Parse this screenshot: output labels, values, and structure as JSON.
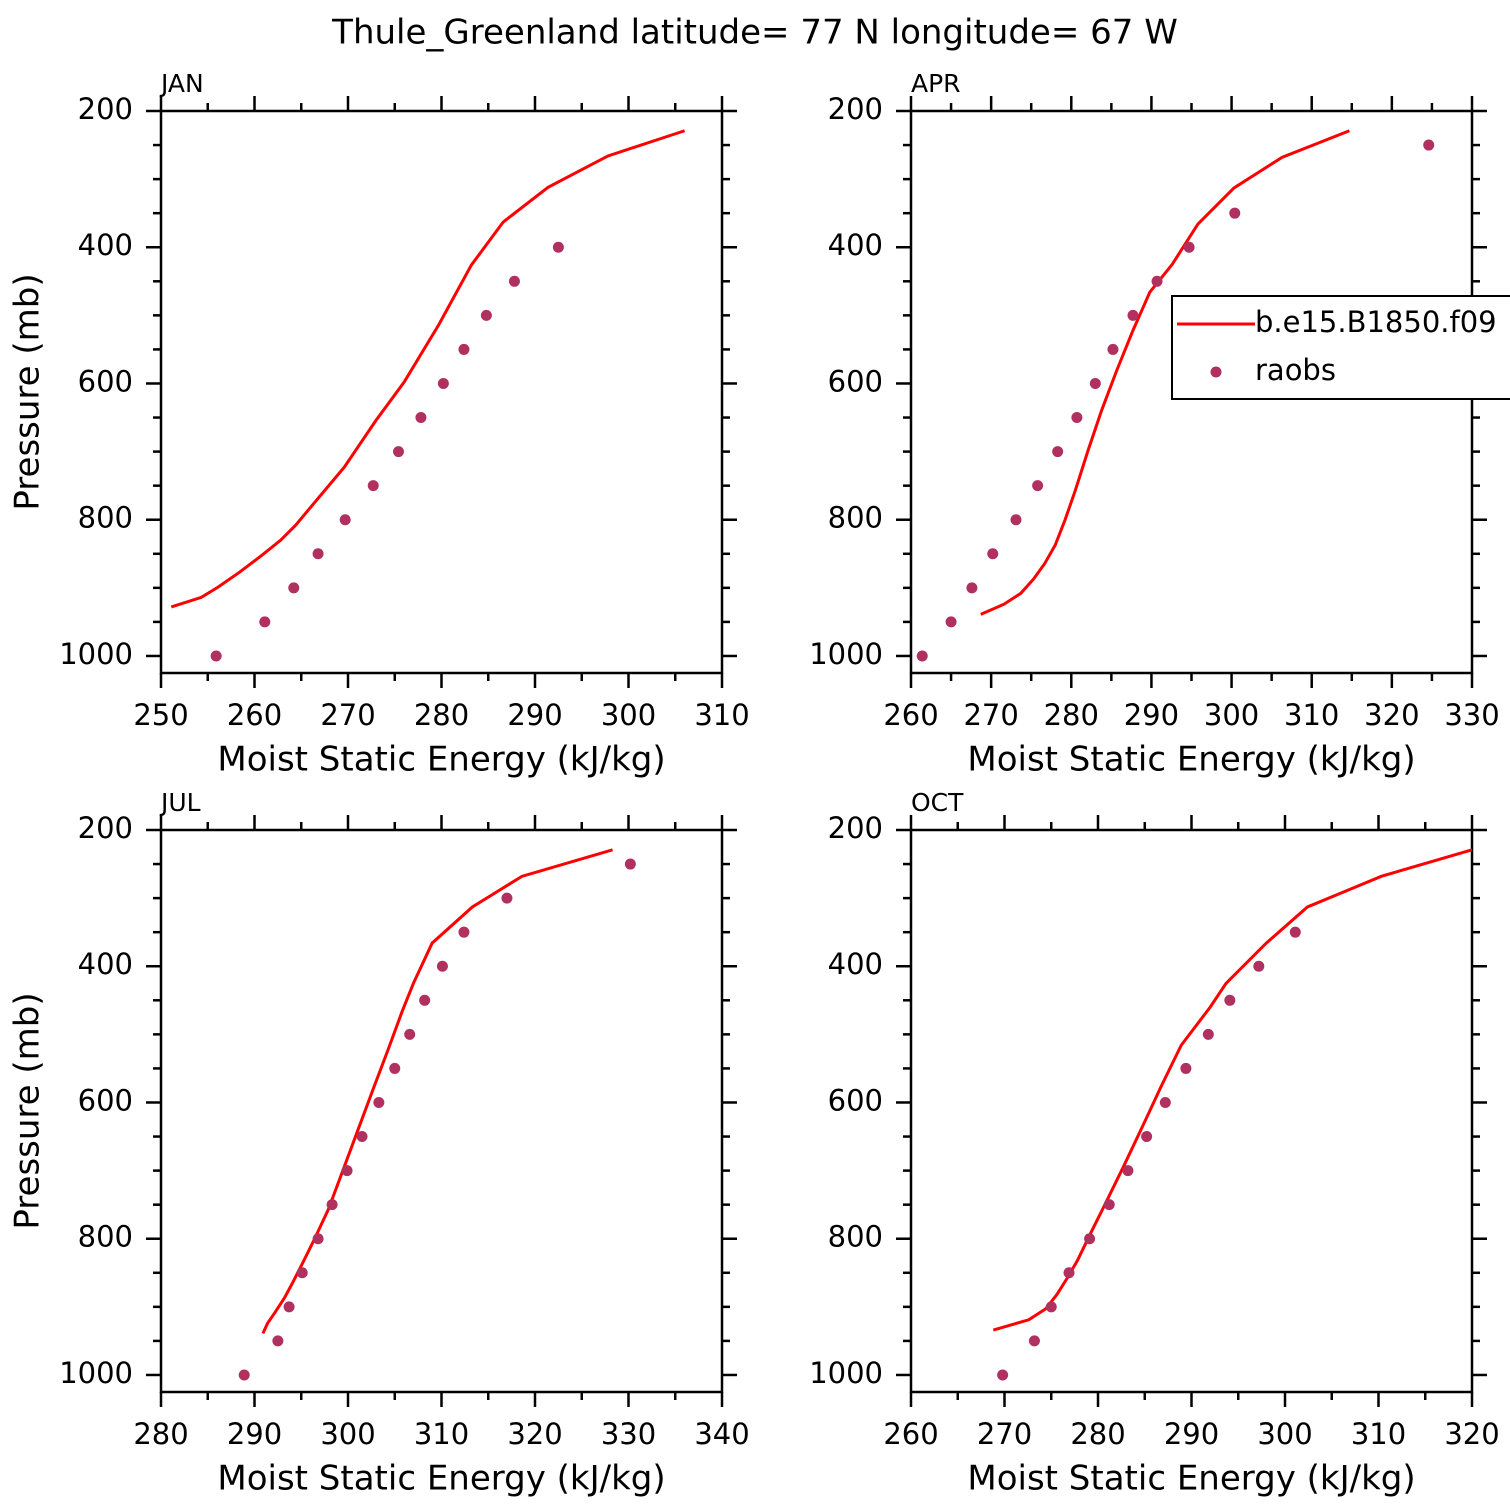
{
  "title": "Thule_Greenland  latitude= 77 N longitude= 67 W",
  "chart_data": [
    {
      "type": "line",
      "title": "JAN",
      "xlabel": "Moist Static Energy (kJ/kg)",
      "ylabel": "Pressure (mb)",
      "xlim": [
        250,
        310
      ],
      "ylim": [
        1025,
        200
      ],
      "xticks": [
        250,
        260,
        270,
        280,
        290,
        300,
        310
      ],
      "yticks": [
        200,
        400,
        600,
        800,
        1000
      ],
      "xminorticks": [
        255,
        265,
        275,
        285,
        295,
        305
      ],
      "yminorticks": [
        250,
        300,
        350,
        450,
        500,
        550,
        650,
        700,
        750,
        850,
        900,
        950
      ],
      "series": [
        {
          "mode": "line",
          "color": "#ff0000",
          "x": [
            251.1,
            254.3,
            256.1,
            258.4,
            260.8,
            262.8,
            264.4,
            266.9,
            269.6,
            273.0,
            276.0,
            279.7,
            283.2,
            286.6,
            291.4,
            297.8,
            306.0
          ],
          "y": [
            928,
            914,
            899,
            877,
            852,
            830,
            808,
            767,
            723,
            654,
            598,
            514,
            426,
            363,
            312,
            266,
            229
          ]
        },
        {
          "mode": "markers",
          "color": "#b03060",
          "x": [
            255.9,
            261.1,
            264.2,
            266.8,
            269.7,
            272.7,
            275.4,
            277.8,
            280.2,
            282.4,
            284.8,
            287.8,
            292.5
          ],
          "y": [
            1000,
            950,
            900,
            850,
            800,
            750,
            700,
            650,
            600,
            550,
            500,
            450,
            400
          ]
        }
      ]
    },
    {
      "type": "line",
      "title": "APR",
      "xlabel": "Moist Static Energy (kJ/kg)",
      "xlim": [
        260,
        330
      ],
      "ylim": [
        1025,
        200
      ],
      "xticks": [
        260,
        270,
        280,
        290,
        300,
        310,
        320,
        330
      ],
      "yticks": [
        200,
        400,
        600,
        800,
        1000
      ],
      "xminorticks": [
        265,
        275,
        285,
        295,
        305,
        315,
        325
      ],
      "yminorticks": [
        250,
        300,
        350,
        450,
        500,
        550,
        650,
        700,
        750,
        850,
        900,
        950
      ],
      "legend": "right",
      "series": [
        {
          "name": "b.e15.B1850.f09",
          "mode": "line",
          "color": "#ff0000",
          "x": [
            268.7,
            271.6,
            273.7,
            275.3,
            276.7,
            278.0,
            279.2,
            280.5,
            282.1,
            283.8,
            285.7,
            287.7,
            289.8,
            292.6,
            295.8,
            300.3,
            306.3,
            314.7
          ],
          "y": [
            939,
            924,
            908,
            887,
            864,
            837,
            801,
            757,
            698,
            639,
            580,
            522,
            466,
            425,
            366,
            313,
            268,
            229
          ]
        },
        {
          "name": "raobs",
          "mode": "markers",
          "color": "#b03060",
          "x": [
            261.4,
            265.0,
            267.6,
            270.2,
            273.1,
            275.8,
            278.3,
            280.7,
            283.0,
            285.2,
            287.7,
            290.7,
            294.7,
            300.4,
            324.6
          ],
          "y": [
            1000,
            950,
            900,
            850,
            800,
            750,
            700,
            650,
            600,
            550,
            500,
            450,
            400,
            350,
            250
          ]
        }
      ]
    },
    {
      "type": "line",
      "title": "JUL",
      "xlabel": "Moist Static Energy (kJ/kg)",
      "ylabel": "Pressure (mb)",
      "xlim": [
        280,
        340
      ],
      "ylim": [
        1025,
        200
      ],
      "xticks": [
        280,
        290,
        300,
        310,
        320,
        330,
        340
      ],
      "yticks": [
        200,
        400,
        600,
        800,
        1000
      ],
      "xminorticks": [
        285,
        295,
        305,
        315,
        325,
        335
      ],
      "yminorticks": [
        250,
        300,
        350,
        450,
        500,
        550,
        650,
        700,
        750,
        850,
        900,
        950
      ],
      "series": [
        {
          "mode": "line",
          "color": "#ff0000",
          "x": [
            290.9,
            291.4,
            292.2,
            293.2,
            294.1,
            295.1,
            296.4,
            297.9,
            299.5,
            301.1,
            302.7,
            304.3,
            305.8,
            307.0,
            309.0,
            313.3,
            318.6,
            328.3
          ],
          "y": [
            939,
            924,
            908,
            887,
            864,
            837,
            801,
            757,
            698,
            639,
            580,
            522,
            466,
            425,
            366,
            313,
            268,
            229
          ]
        },
        {
          "mode": "markers",
          "color": "#b03060",
          "x": [
            288.9,
            292.5,
            293.7,
            295.1,
            296.8,
            298.3,
            299.9,
            301.5,
            303.3,
            305.0,
            306.6,
            308.2,
            310.1,
            312.4,
            317.0,
            330.2
          ],
          "y": [
            1000,
            950,
            900,
            850,
            800,
            750,
            700,
            650,
            600,
            550,
            500,
            450,
            400,
            350,
            300,
            250
          ]
        }
      ]
    },
    {
      "type": "line",
      "title": "OCT",
      "xlabel": "Moist Static Energy (kJ/kg)",
      "xlim": [
        260,
        320
      ],
      "ylim": [
        1025,
        200
      ],
      "xticks": [
        260,
        270,
        280,
        290,
        300,
        310,
        320
      ],
      "yticks": [
        200,
        400,
        600,
        800,
        1000
      ],
      "xminorticks": [
        265,
        275,
        285,
        295,
        305,
        315
      ],
      "yminorticks": [
        250,
        300,
        350,
        450,
        500,
        550,
        650,
        700,
        750,
        850,
        900,
        950
      ],
      "series": [
        {
          "mode": "line",
          "color": "#ff0000",
          "x": [
            268.8,
            272.6,
            274.4,
            275.6,
            276.7,
            277.8,
            279.1,
            280.7,
            282.8,
            284.8,
            286.8,
            288.9,
            292.0,
            293.7,
            298.0,
            302.4,
            310.3,
            320.0
          ],
          "y": [
            934,
            919,
            903,
            882,
            858,
            832,
            795,
            751,
            692,
            634,
            575,
            516,
            460,
            425,
            366,
            313,
            268,
            229
          ]
        },
        {
          "mode": "markers",
          "color": "#b03060",
          "x": [
            269.8,
            273.2,
            275.0,
            276.9,
            279.1,
            281.2,
            283.2,
            285.2,
            287.2,
            289.4,
            291.8,
            294.1,
            297.2,
            301.1
          ],
          "y": [
            1000,
            950,
            900,
            850,
            800,
            750,
            700,
            650,
            600,
            550,
            500,
            450,
            400,
            350
          ]
        }
      ]
    }
  ]
}
